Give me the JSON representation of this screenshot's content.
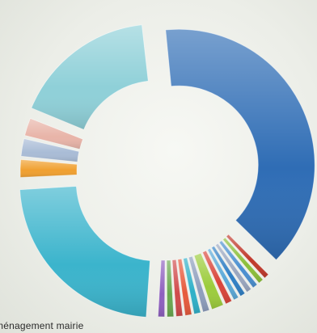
{
  "chart_data": {
    "type": "pie",
    "variant": "donut-exploded",
    "value_unit": "degrees",
    "title": "",
    "legend": "none",
    "slices": [
      {
        "value": 118,
        "color": "#2f6db5"
      },
      {
        "value": 2.5,
        "color": "#c0392b"
      },
      {
        "value": 2.5,
        "color": "#8bbf3a"
      },
      {
        "value": 2.5,
        "color": "#4a8fd0"
      },
      {
        "value": 2.5,
        "color": "#9aa7c0"
      },
      {
        "value": 2.5,
        "color": "#2f7fc4"
      },
      {
        "value": 2.5,
        "color": "#5aa9d8"
      },
      {
        "value": 3,
        "color": "#d9453a"
      },
      {
        "value": 5,
        "color": "#9ccc3c"
      },
      {
        "value": 3,
        "color": "#8e9ebd"
      },
      {
        "value": 3,
        "color": "#2fb0c8"
      },
      {
        "value": 3,
        "color": "#e65a3c"
      },
      {
        "value": 3,
        "color": "#d04a4a"
      },
      {
        "value": 3,
        "color": "#6aa84f"
      },
      {
        "value": 3,
        "color": "#8e5fbf"
      },
      {
        "value": 70,
        "color": "#3bb4cc"
      },
      {
        "value": 7,
        "color": "#f0a030"
      },
      {
        "value": 7,
        "color": "#a9bcd6"
      },
      {
        "value": 7,
        "color": "#e8b4a8"
      },
      {
        "value": 52,
        "color": "#8fd0d8"
      }
    ],
    "visible_text": "ménagement mairie"
  }
}
